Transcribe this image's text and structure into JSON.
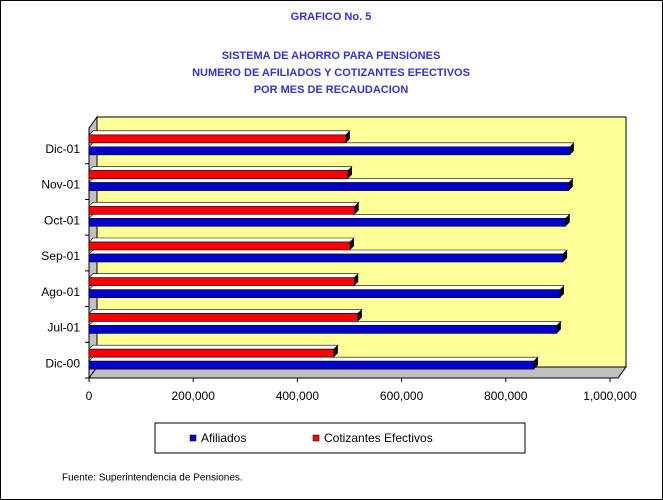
{
  "chart_data": {
    "type": "bar",
    "orientation": "horizontal",
    "title": "GRAFICO No. 5",
    "subtitle": [
      "SISTEMA DE AHORRO PARA PENSIONES",
      "NUMERO DE AFILIADOS Y COTIZANTES EFECTIVOS",
      "POR MES DE RECAUDACION"
    ],
    "categories": [
      "Dic-00",
      "Jul-01",
      "Ago-01",
      "Sep-01",
      "Oct-01",
      "Nov-01",
      "Dic-01"
    ],
    "series": [
      {
        "name": "Afiliados",
        "color": "#0000cc",
        "values": [
          854000,
          898000,
          904000,
          910000,
          915000,
          921000,
          923000
        ]
      },
      {
        "name": "Cotizantes Efectivos",
        "color": "#ff0000",
        "values": [
          470000,
          516000,
          509000,
          501000,
          510000,
          497000,
          493000
        ]
      }
    ],
    "xlim": [
      0,
      1000000
    ],
    "xticks": [
      0,
      {
        "value": 200000,
        "label": "200,000"
      },
      {
        "value": 400000,
        "label": "400,000"
      },
      {
        "value": 600000,
        "label": "600,000"
      },
      {
        "value": 800000,
        "label": "800,000"
      },
      {
        "value": 1000000,
        "label": "1,000,000"
      }
    ],
    "legend": "bottom",
    "source": "Fuente: Superintendencia de Pensiones."
  }
}
